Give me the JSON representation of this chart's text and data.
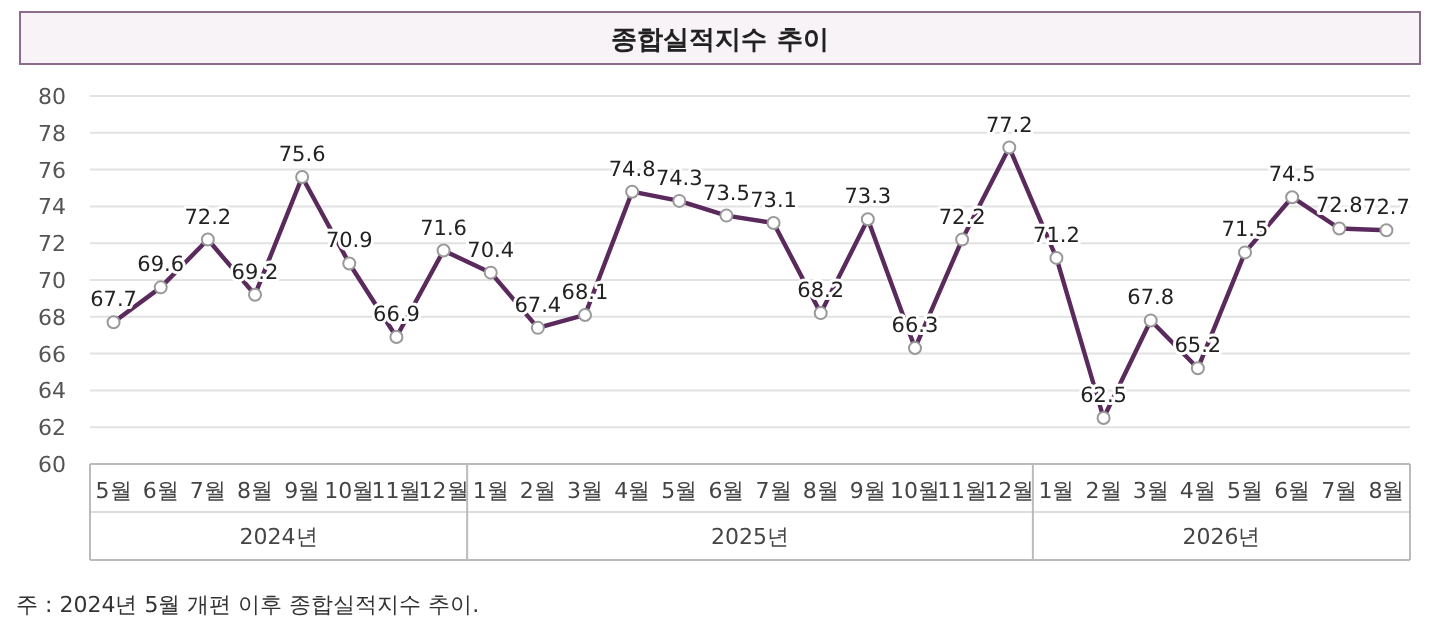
{
  "chart_data": {
    "type": "line",
    "title": "종합실적지수 추이",
    "categories": [
      "5월",
      "6월",
      "7월",
      "8월",
      "9월",
      "10월",
      "11월",
      "12월",
      "1월",
      "2월",
      "3월",
      "4월",
      "5월",
      "6월",
      "7월",
      "8월",
      "9월",
      "10월",
      "11월",
      "12월",
      "1월",
      "2월",
      "3월",
      "4월",
      "5월",
      "6월",
      "7월",
      "8월"
    ],
    "series": [
      {
        "color": "#5a2a5c",
        "values": [
          67.7,
          69.6,
          72.2,
          69.2,
          75.6,
          70.9,
          66.9,
          71.6,
          70.4,
          67.4,
          68.1,
          74.8,
          74.3,
          73.5,
          73.1,
          68.2,
          73.3,
          66.3,
          72.2,
          77.2,
          71.2,
          62.5,
          67.8,
          65.2,
          71.5,
          74.5,
          72.8,
          72.7
        ]
      }
    ],
    "ylim": [
      60,
      80
    ],
    "yticks": [
      60,
      62,
      64,
      66,
      68,
      70,
      72,
      74,
      76,
      78,
      80
    ],
    "grid": "y",
    "marker": "circle",
    "data_labels": true,
    "annotations": [
      "2024년",
      "2025년",
      "2026년",
      "주 : 2024년 5월 개편 이후 종합실적지수 추이."
    ]
  }
}
